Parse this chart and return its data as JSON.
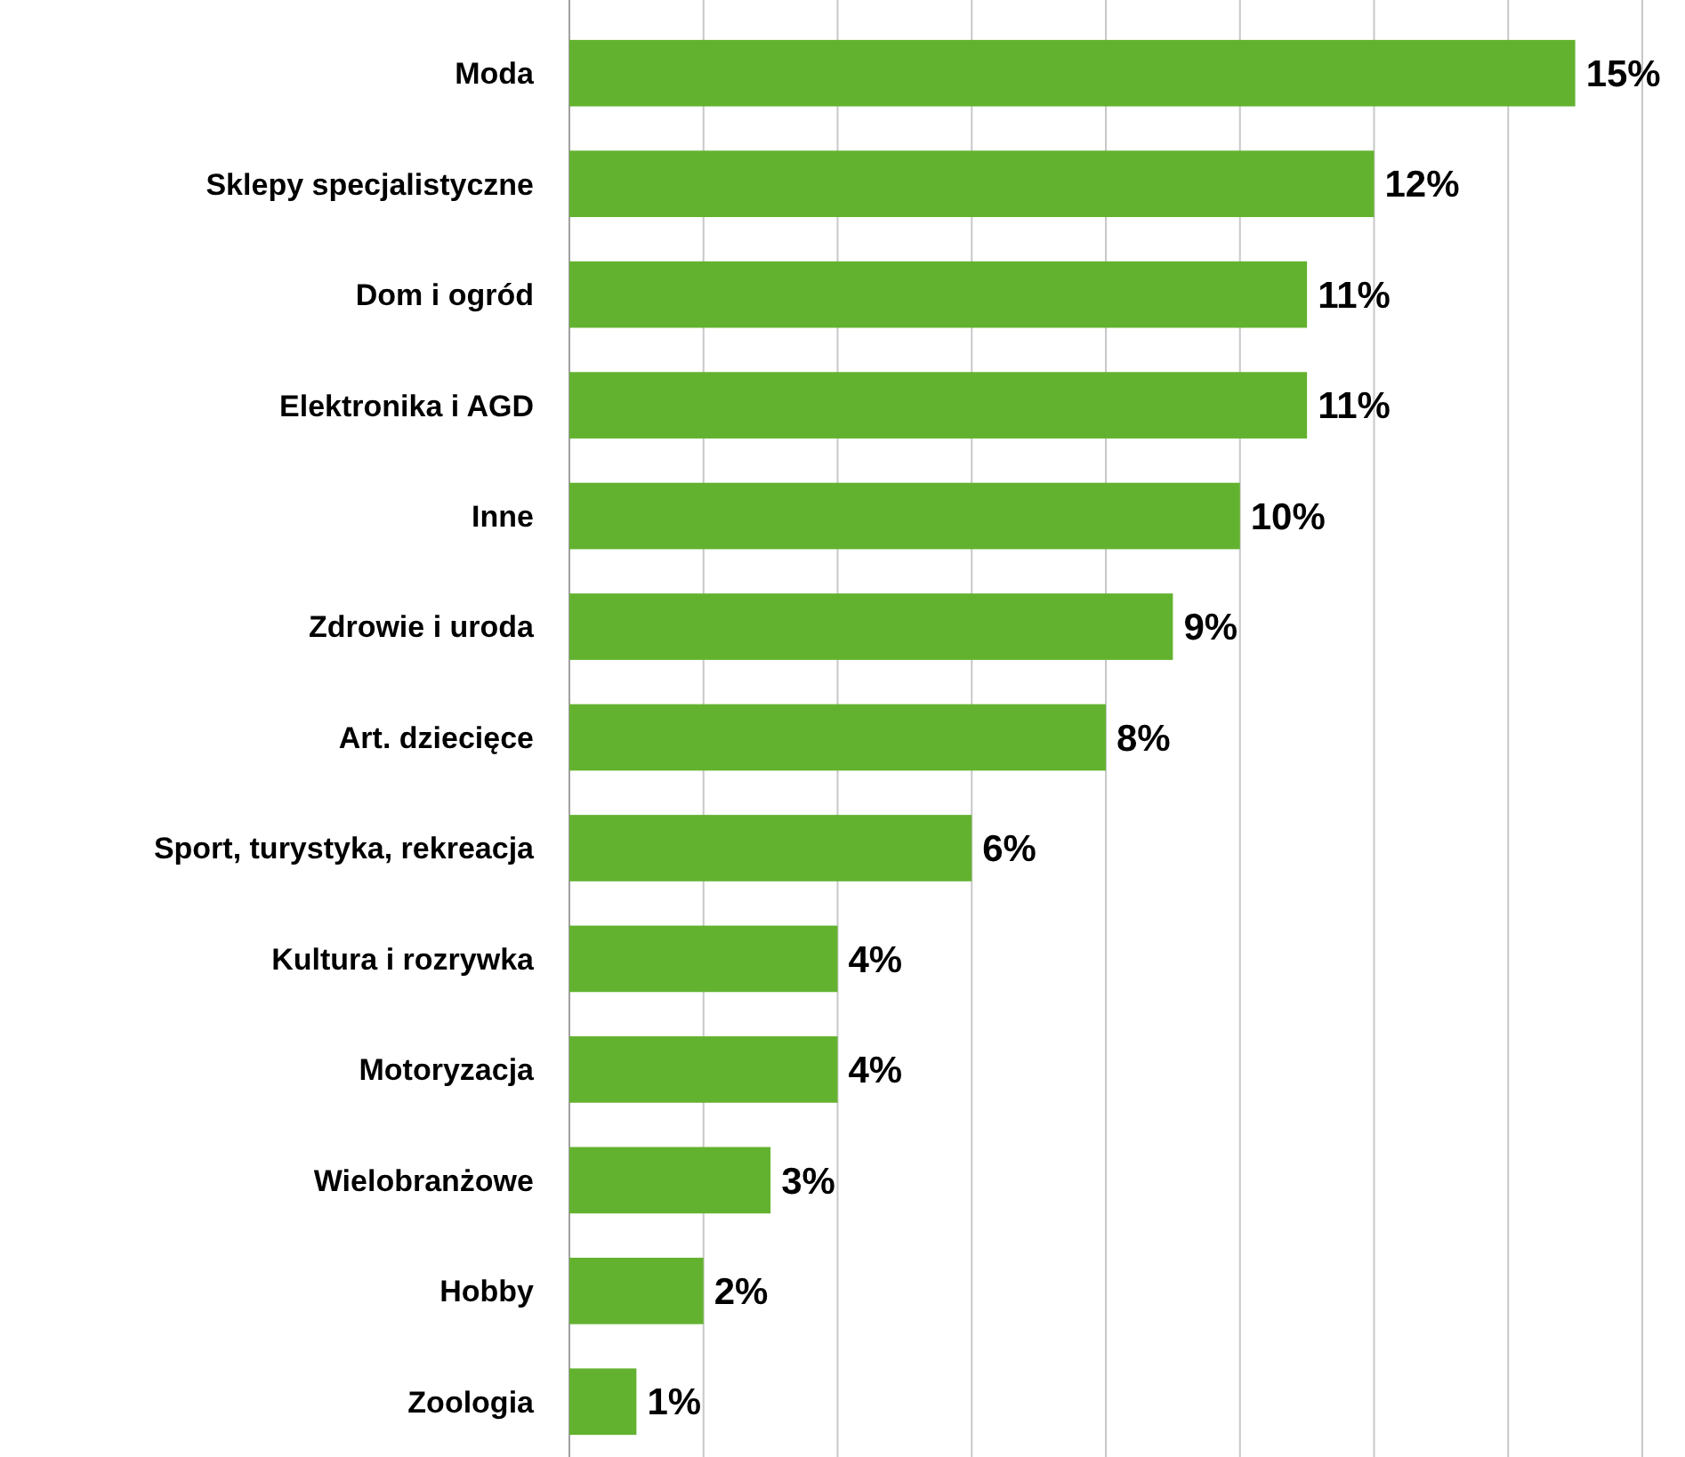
{
  "chart_data": {
    "type": "bar",
    "orientation": "horizontal",
    "categories": [
      "Moda",
      "Sklepy specjalistyczne",
      "Dom i ogród",
      "Elektronika i AGD",
      "Inne",
      "Zdrowie i uroda",
      "Art. dziecięce",
      "Sport, turystyka, rekreacja",
      "Kultura i rozrywka",
      "Motoryzacja",
      "Wielobranżowe",
      "Hobby",
      "Zoologia"
    ],
    "values": [
      15,
      12,
      11,
      11,
      10,
      9,
      8,
      6,
      4,
      4,
      3,
      2,
      1
    ],
    "value_labels": [
      "15%",
      "12%",
      "11%",
      "11%",
      "10%",
      "9%",
      "8%",
      "6%",
      "4%",
      "4%",
      "3%",
      "2%",
      "1%"
    ],
    "color": "#63b22f",
    "xlim": [
      0,
      16
    ],
    "xticks": [
      {
        "value": 0,
        "label": null
      },
      {
        "value": 2,
        "label": null
      },
      {
        "value": 4,
        "label": null
      },
      {
        "value": 6,
        "label": null
      },
      {
        "value": 8,
        "label": null
      },
      {
        "value": 10,
        "label": null
      },
      {
        "value": 12,
        "label": null
      },
      {
        "value": 14,
        "label": null
      },
      {
        "value": 16,
        "label": null
      }
    ],
    "grid": "x",
    "tick_labels": "y"
  }
}
